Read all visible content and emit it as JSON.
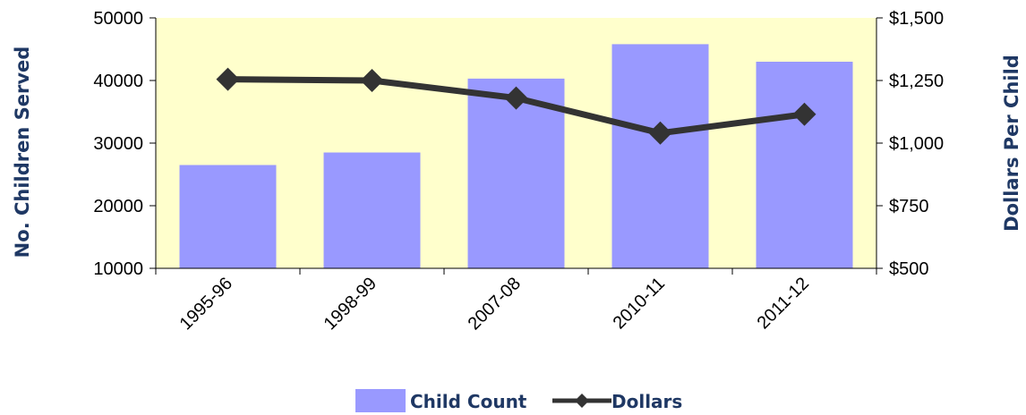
{
  "chart_data": {
    "type": "bar",
    "categories": [
      "1995-96",
      "1998-99",
      "2007-08",
      "2010-11",
      "2011-12"
    ],
    "series": [
      {
        "name": "Child Count",
        "type": "bar",
        "axis": "left",
        "values": [
          26500,
          28500,
          40300,
          45800,
          43000
        ]
      },
      {
        "name": "Dollars",
        "type": "line",
        "axis": "right",
        "values": [
          1255,
          1250,
          1180,
          1040,
          1115
        ]
      }
    ],
    "ylabel": "No. Children Served",
    "y2label": "Dollars Per Child",
    "ylim": [
      10000,
      50000
    ],
    "y2lim": [
      500,
      1500
    ],
    "yticks": [
      "50000",
      "40000",
      "30000",
      "20000",
      "10000"
    ],
    "y2ticks": [
      "$1,500",
      "$1,250",
      "$1,000",
      "$750",
      "$500"
    ],
    "legend_position": "bottom",
    "grid": false,
    "colors": {
      "bar": "#9999ff",
      "line": "#333333",
      "plot_bg": "#ffffcc",
      "title": "#1f3864"
    }
  }
}
